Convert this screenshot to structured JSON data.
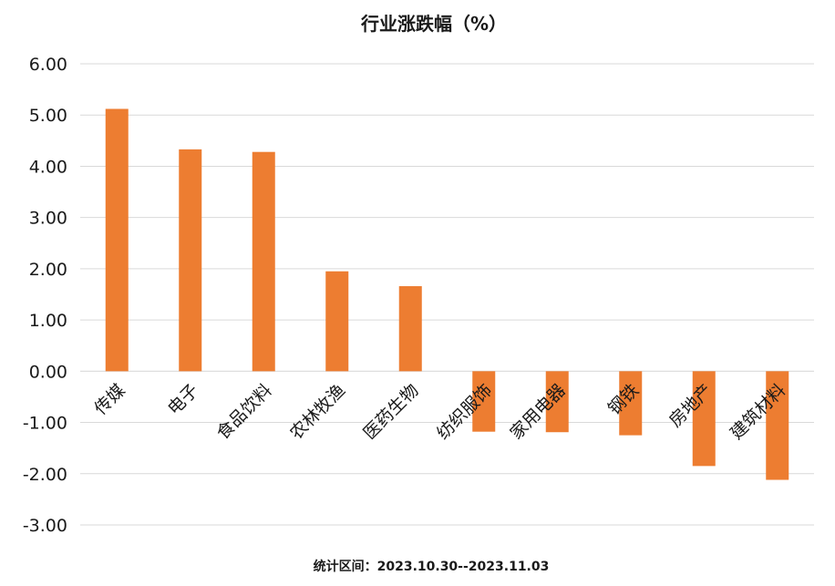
{
  "chart_data": {
    "type": "bar",
    "title": "行业涨跌幅（%）",
    "categories": [
      "传媒",
      "电子",
      "食品饮料",
      "农林牧渔",
      "医药生物",
      "纺织服饰",
      "家用电器",
      "钢铁",
      "房地产",
      "建筑材料"
    ],
    "values": [
      5.12,
      4.33,
      4.28,
      1.95,
      1.66,
      -1.18,
      -1.19,
      -1.25,
      -1.85,
      -2.12
    ],
    "ylim": [
      -3,
      6
    ],
    "yticks": [
      "6.00",
      "5.00",
      "4.00",
      "3.00",
      "2.00",
      "1.00",
      "0.00",
      "-1.00",
      "-2.00",
      "-3.00"
    ],
    "xlabel": "",
    "ylabel": "",
    "grid": true,
    "bar_color": "#ED7D31"
  },
  "footer": "统计区间：2023.10.30--2023.11.03"
}
